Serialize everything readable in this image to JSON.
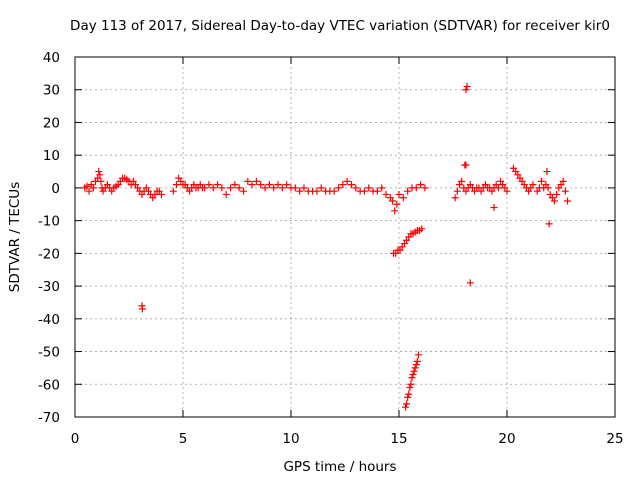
{
  "chart_data": {
    "type": "scatter",
    "title": "Day 113 of 2017, Sidereal Day-to-day VTEC variation (SDTVAR) for receiver kir0",
    "xlabel": "GPS time / hours",
    "ylabel": "SDTVAR / TECUs",
    "xlim": [
      0,
      25
    ],
    "ylim": [
      -70,
      40
    ],
    "xticks": [
      0,
      5,
      10,
      15,
      20,
      25
    ],
    "yticks": [
      -70,
      -60,
      -50,
      -40,
      -30,
      -20,
      -10,
      0,
      10,
      20,
      30,
      40
    ],
    "grid": true,
    "marker": "+",
    "series": [
      {
        "name": "SDTVAR",
        "color": "#ff0000",
        "x": [
          0.45,
          0.55,
          0.65,
          0.75,
          0.85,
          0.95,
          1.05,
          1.1,
          1.15,
          1.2,
          1.25,
          1.3,
          1.4,
          1.5,
          1.6,
          1.7,
          1.8,
          1.9,
          2.0,
          2.1,
          2.2,
          2.3,
          2.4,
          2.5,
          2.6,
          2.7,
          2.8,
          2.9,
          3.0,
          3.1,
          3.2,
          3.3,
          3.4,
          3.5,
          3.6,
          3.7,
          3.8,
          3.9,
          4.0,
          3.1,
          3.12,
          4.55,
          4.7,
          4.8,
          4.9,
          5.0,
          5.1,
          5.2,
          5.3,
          5.4,
          5.5,
          5.6,
          5.7,
          5.8,
          5.9,
          6.0,
          6.2,
          6.4,
          6.6,
          6.8,
          7.0,
          7.2,
          7.4,
          7.6,
          7.8,
          8.0,
          8.2,
          8.4,
          8.6,
          8.8,
          9.0,
          9.2,
          9.4,
          9.6,
          9.8,
          10.0,
          10.2,
          10.4,
          10.6,
          10.8,
          11.0,
          11.2,
          11.4,
          11.6,
          11.8,
          12.0,
          12.2,
          12.4,
          12.6,
          12.8,
          13.0,
          13.2,
          13.4,
          13.6,
          13.8,
          14.0,
          14.2,
          14.4,
          14.6,
          14.7,
          14.8,
          14.9,
          15.0,
          15.2,
          15.4,
          15.6,
          15.8,
          16.0,
          16.2,
          14.75,
          14.85,
          14.95,
          15.05,
          15.15,
          15.25,
          15.35,
          15.45,
          15.55,
          15.65,
          15.75,
          15.85,
          15.95,
          16.05,
          15.3,
          15.35,
          15.4,
          15.45,
          15.5,
          15.55,
          15.6,
          15.65,
          15.7,
          15.75,
          15.8,
          15.85,
          15.9,
          17.6,
          17.7,
          17.8,
          17.9,
          18.0,
          18.1,
          18.2,
          18.3,
          18.4,
          18.5,
          18.6,
          18.7,
          18.8,
          18.9,
          19.0,
          19.1,
          19.2,
          19.3,
          19.4,
          19.5,
          19.6,
          19.7,
          19.8,
          19.9,
          20.0,
          18.05,
          18.1,
          18.15,
          18.1,
          18.3,
          19.4,
          20.3,
          20.4,
          20.5,
          20.6,
          20.7,
          20.8,
          20.9,
          21.0,
          21.1,
          21.2,
          21.4,
          21.5,
          21.6,
          21.7,
          21.8,
          21.9,
          22.0,
          22.1,
          22.2,
          22.3,
          22.4,
          22.5,
          22.6,
          22.7,
          22.8,
          21.85,
          21.95
        ],
        "y": [
          0,
          0.5,
          -1,
          1,
          0,
          2,
          3,
          5,
          4,
          2,
          0,
          -1,
          0,
          1,
          0,
          -1,
          0,
          0.5,
          1,
          2,
          3,
          3,
          2.5,
          2,
          1,
          2,
          1,
          0,
          -1,
          -2,
          -1,
          0,
          -1,
          -2,
          -3,
          -2,
          -1,
          -1,
          -2,
          -36,
          -37,
          -1,
          1,
          3,
          2,
          1,
          1,
          0,
          -1,
          0,
          1,
          0,
          0,
          1,
          0,
          0,
          1,
          0,
          1,
          0,
          -2,
          0,
          1,
          0,
          -1,
          2,
          1,
          2,
          1,
          0,
          1,
          0,
          1,
          0,
          1,
          0,
          0,
          -1,
          0,
          -1,
          -1,
          -1,
          0,
          -1,
          -1,
          -1,
          0,
          1,
          2,
          1,
          0,
          -1,
          -1,
          0,
          -1,
          -1,
          0,
          -2,
          -3,
          -4,
          -7,
          -5,
          -2,
          -3,
          -1,
          0,
          0,
          1,
          0,
          -20,
          -20,
          -19,
          -19,
          -18,
          -17,
          -16,
          -15,
          -14,
          -14,
          -13.5,
          -13,
          -13,
          -12.5,
          -67,
          -66,
          -64,
          -63,
          -61,
          -60,
          -58,
          -57,
          -56,
          -55,
          -54,
          -53,
          -51,
          -3,
          -1,
          1,
          2,
          0,
          -1,
          0,
          1,
          0,
          -1,
          0,
          0,
          -1,
          0,
          1,
          0,
          0,
          -1,
          0,
          1,
          0,
          2,
          1,
          0,
          -1,
          7,
          7,
          31,
          30,
          -29,
          -6,
          6,
          5,
          4,
          3,
          2,
          1,
          0,
          -1,
          0,
          1,
          -1,
          0,
          2,
          0,
          1,
          0,
          -2,
          -3,
          -4,
          -2,
          0,
          1,
          2,
          -1,
          -4,
          5,
          -11
        ]
      }
    ]
  }
}
